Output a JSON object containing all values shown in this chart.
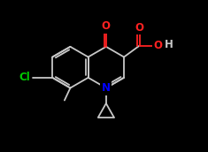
{
  "background_color": "#000000",
  "bond_color": "#c8c8c8",
  "bond_width": 1.3,
  "figsize": [
    2.35,
    1.72
  ],
  "dpi": 100,
  "N_color": "#0000ff",
  "O_color": "#ff2222",
  "Cl_color": "#00cc00",
  "H_color": "#c8c8c8",
  "font_size": 8.5,
  "bl": 0.95,
  "xlim": [
    0.0,
    9.5
  ],
  "ylim": [
    0.5,
    7.5
  ]
}
